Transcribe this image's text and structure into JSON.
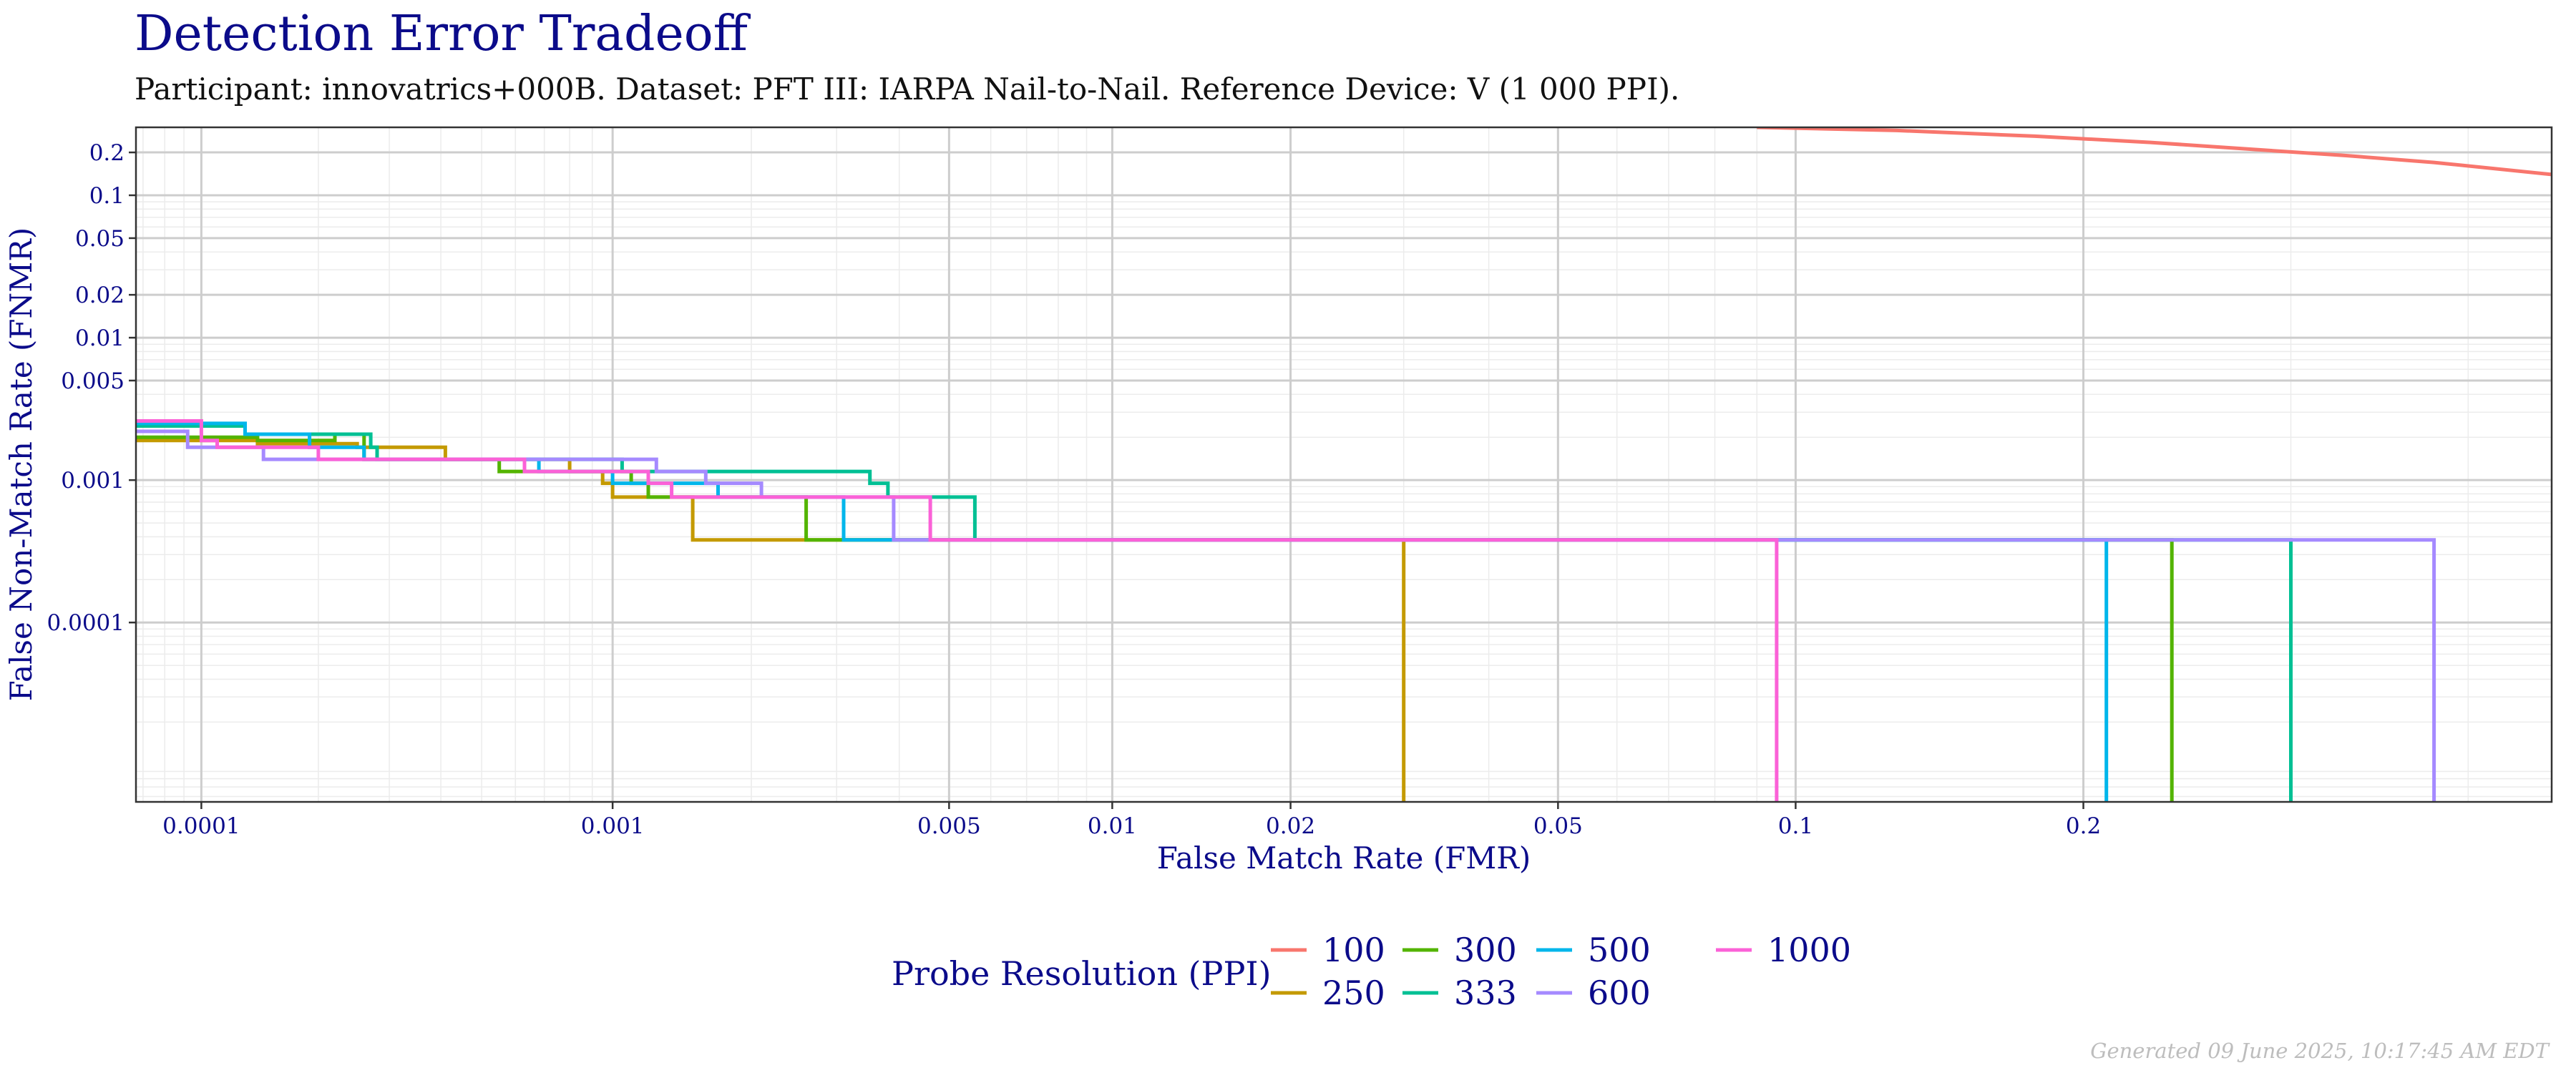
{
  "chart_data": {
    "type": "line",
    "step": true,
    "title": "Detection Error Tradeoff",
    "subtitle": "Participant: innovatrics+000B. Dataset: PFT III: IARPA Nail-to-Nail. Reference Device: V (1 000 PPI).",
    "xlabel": "False Match Rate (FMR)",
    "ylabel": "False Non-Match Rate (FNMR)",
    "x_scale": "probit",
    "y_scale": "log",
    "xlim": [
      6.7e-05,
      0.45
    ],
    "ylim": [
      5.5e-06,
      0.3
    ],
    "x_ticks": [
      {
        "value": 0.0001,
        "label": "0.0001"
      },
      {
        "value": 0.001,
        "label": "0.001"
      },
      {
        "value": 0.005,
        "label": "0.005"
      },
      {
        "value": 0.01,
        "label": "0.01"
      },
      {
        "value": 0.02,
        "label": "0.02"
      },
      {
        "value": 0.05,
        "label": "0.05"
      },
      {
        "value": 0.1,
        "label": "0.1"
      },
      {
        "value": 0.2,
        "label": "0.2"
      }
    ],
    "y_ticks": [
      {
        "value": 0.2,
        "label": "0.2"
      },
      {
        "value": 0.1,
        "label": "0.1"
      },
      {
        "value": 0.05,
        "label": "0.05"
      },
      {
        "value": 0.02,
        "label": "0.02"
      },
      {
        "value": 0.01,
        "label": "0.01"
      },
      {
        "value": 0.005,
        "label": "0.005"
      },
      {
        "value": 0.001,
        "label": "0.001"
      },
      {
        "value": 0.0001,
        "label": "0.0001"
      }
    ],
    "legend": {
      "title": "Probe Resolution (PPI)",
      "position": "bottom"
    },
    "series": [
      {
        "name": "100",
        "color": "#F8766D",
        "points": [
          [
            0.09,
            0.3
          ],
          [
            0.13,
            0.285
          ],
          [
            0.18,
            0.26
          ],
          [
            0.23,
            0.235
          ],
          [
            0.28,
            0.21
          ],
          [
            0.33,
            0.19
          ],
          [
            0.38,
            0.17
          ],
          [
            0.45,
            0.14
          ]
        ]
      },
      {
        "name": "250",
        "color": "#C49A00",
        "points": [
          [
            6.7e-05,
            0.0019
          ],
          [
            0.00014,
            0.0019
          ],
          [
            0.00014,
            0.0018
          ],
          [
            0.00025,
            0.0018
          ],
          [
            0.00025,
            0.0017
          ],
          [
            0.00041,
            0.0017
          ],
          [
            0.00041,
            0.0014
          ],
          [
            0.0008,
            0.0014
          ],
          [
            0.0008,
            0.00115
          ],
          [
            0.00095,
            0.00115
          ],
          [
            0.00095,
            0.00095
          ],
          [
            0.001,
            0.00095
          ],
          [
            0.001,
            0.00076
          ],
          [
            0.0015,
            0.00076
          ],
          [
            0.0015,
            0.00038
          ],
          [
            0.03,
            0.00038
          ],
          [
            0.03,
            5.5e-06
          ]
        ]
      },
      {
        "name": "300",
        "color": "#53B400",
        "points": [
          [
            6.7e-05,
            0.002
          ],
          [
            0.00014,
            0.002
          ],
          [
            0.00014,
            0.0019
          ],
          [
            0.00022,
            0.0019
          ],
          [
            0.00022,
            0.0021
          ],
          [
            0.00026,
            0.0021
          ],
          [
            0.00026,
            0.0014
          ],
          [
            0.00055,
            0.0014
          ],
          [
            0.00055,
            0.00115
          ],
          [
            0.0011,
            0.00115
          ],
          [
            0.0011,
            0.00095
          ],
          [
            0.0012,
            0.00095
          ],
          [
            0.0012,
            0.00076
          ],
          [
            0.0026,
            0.00076
          ],
          [
            0.0026,
            0.00038
          ],
          [
            0.24,
            0.00038
          ],
          [
            0.24,
            5.5e-06
          ]
        ]
      },
      {
        "name": "333",
        "color": "#00C094",
        "points": [
          [
            6.7e-05,
            0.0024
          ],
          [
            0.00013,
            0.0024
          ],
          [
            0.00013,
            0.0021
          ],
          [
            0.00027,
            0.0021
          ],
          [
            0.00027,
            0.0017
          ],
          [
            0.00028,
            0.0017
          ],
          [
            0.00028,
            0.0014
          ],
          [
            0.00105,
            0.0014
          ],
          [
            0.00105,
            0.00115
          ],
          [
            0.0035,
            0.00115
          ],
          [
            0.0035,
            0.00095
          ],
          [
            0.0038,
            0.00095
          ],
          [
            0.0038,
            0.00076
          ],
          [
            0.0056,
            0.00076
          ],
          [
            0.0056,
            0.00038
          ],
          [
            0.3,
            0.00038
          ],
          [
            0.3,
            5.5e-06
          ]
        ]
      },
      {
        "name": "500",
        "color": "#00B6EB",
        "points": [
          [
            6.7e-05,
            0.0025
          ],
          [
            0.00013,
            0.0025
          ],
          [
            0.00013,
            0.0021
          ],
          [
            0.00019,
            0.0021
          ],
          [
            0.00019,
            0.0017
          ],
          [
            0.00026,
            0.0017
          ],
          [
            0.00026,
            0.0014
          ],
          [
            0.00068,
            0.0014
          ],
          [
            0.00068,
            0.00115
          ],
          [
            0.001,
            0.00115
          ],
          [
            0.001,
            0.00095
          ],
          [
            0.0017,
            0.00095
          ],
          [
            0.0017,
            0.00076
          ],
          [
            0.0031,
            0.00076
          ],
          [
            0.0031,
            0.00038
          ],
          [
            0.21,
            0.00038
          ],
          [
            0.21,
            5.5e-06
          ]
        ]
      },
      {
        "name": "600",
        "color": "#A58AFF",
        "points": [
          [
            6.7e-05,
            0.0022
          ],
          [
            9.2e-05,
            0.0022
          ],
          [
            9.2e-05,
            0.0017
          ],
          [
            0.000145,
            0.0017
          ],
          [
            0.000145,
            0.0014
          ],
          [
            0.00125,
            0.0014
          ],
          [
            0.00125,
            0.00115
          ],
          [
            0.0016,
            0.00115
          ],
          [
            0.0016,
            0.00095
          ],
          [
            0.0021,
            0.00095
          ],
          [
            0.0021,
            0.00076
          ],
          [
            0.0039,
            0.00076
          ],
          [
            0.0039,
            0.00038
          ],
          [
            0.38,
            0.00038
          ],
          [
            0.38,
            5.5e-06
          ]
        ]
      },
      {
        "name": "1000",
        "color": "#FB61D7",
        "points": [
          [
            6.7e-05,
            0.0026
          ],
          [
            0.0001,
            0.0026
          ],
          [
            0.0001,
            0.0019
          ],
          [
            0.00011,
            0.0019
          ],
          [
            0.00011,
            0.0017
          ],
          [
            0.0002,
            0.0017
          ],
          [
            0.0002,
            0.0014
          ],
          [
            0.00063,
            0.0014
          ],
          [
            0.00063,
            0.00115
          ],
          [
            0.0012,
            0.00115
          ],
          [
            0.0012,
            0.00095
          ],
          [
            0.00135,
            0.00095
          ],
          [
            0.00135,
            0.00076
          ],
          [
            0.0046,
            0.00076
          ],
          [
            0.0046,
            0.00038
          ],
          [
            0.095,
            0.00038
          ],
          [
            0.095,
            5.5e-06
          ]
        ]
      }
    ],
    "footer": "Generated 09 June 2025, 10:17:45 AM EDT"
  }
}
